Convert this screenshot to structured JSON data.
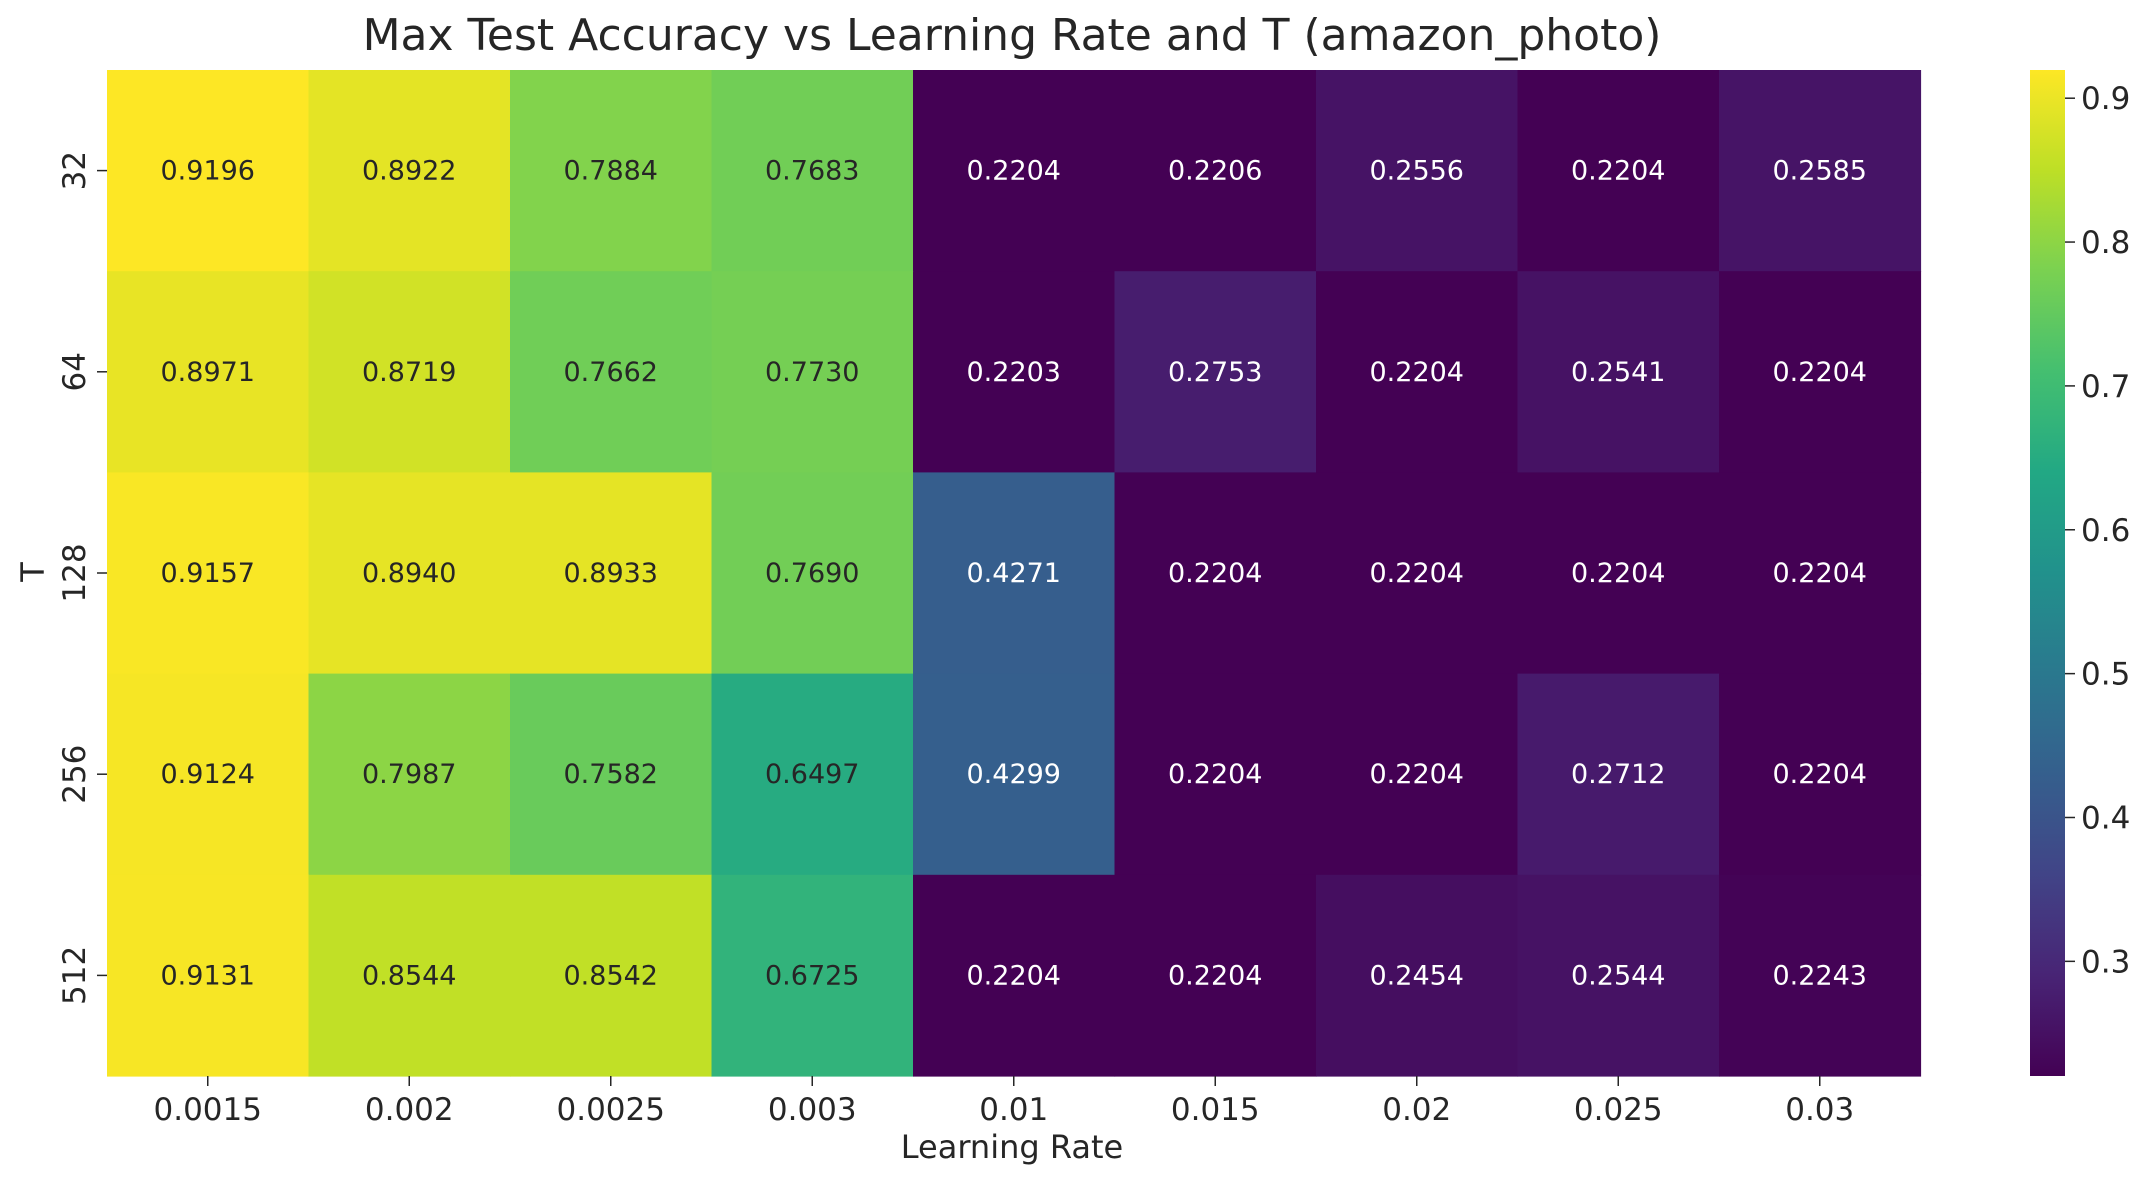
{
  "chart_data": {
    "type": "heatmap",
    "title": "Max Test Accuracy vs Learning Rate and T (amazon_photo)",
    "xlabel": "Learning Rate",
    "ylabel": "T",
    "x_categories": [
      "0.0015",
      "0.002",
      "0.0025",
      "0.003",
      "0.01",
      "0.015",
      "0.02",
      "0.025",
      "0.03"
    ],
    "y_categories": [
      "32",
      "64",
      "128",
      "256",
      "512"
    ],
    "values": [
      [
        0.9196,
        0.8922,
        0.7884,
        0.7683,
        0.2204,
        0.2206,
        0.2556,
        0.2204,
        0.2585
      ],
      [
        0.8971,
        0.8719,
        0.7662,
        0.773,
        0.2203,
        0.2753,
        0.2204,
        0.2541,
        0.2204
      ],
      [
        0.9157,
        0.894,
        0.8933,
        0.769,
        0.4271,
        0.2204,
        0.2204,
        0.2204,
        0.2204
      ],
      [
        0.9124,
        0.7987,
        0.7582,
        0.6497,
        0.4299,
        0.2204,
        0.2204,
        0.2712,
        0.2204
      ],
      [
        0.9131,
        0.8544,
        0.8542,
        0.6725,
        0.2204,
        0.2204,
        0.2454,
        0.2544,
        0.2243
      ]
    ],
    "value_labels": [
      [
        "0.9196",
        "0.8922",
        "0.7884",
        "0.7683",
        "0.2204",
        "0.2206",
        "0.2556",
        "0.2204",
        "0.2585"
      ],
      [
        "0.8971",
        "0.8719",
        "0.7662",
        "0.7730",
        "0.2203",
        "0.2753",
        "0.2204",
        "0.2541",
        "0.2204"
      ],
      [
        "0.9157",
        "0.8940",
        "0.8933",
        "0.7690",
        "0.4271",
        "0.2204",
        "0.2204",
        "0.2204",
        "0.2204"
      ],
      [
        "0.9124",
        "0.7987",
        "0.7582",
        "0.6497",
        "0.4299",
        "0.2204",
        "0.2204",
        "0.2712",
        "0.2204"
      ],
      [
        "0.9131",
        "0.8544",
        "0.8542",
        "0.6725",
        "0.2204",
        "0.2204",
        "0.2454",
        "0.2544",
        "0.2243"
      ]
    ],
    "colormap": "viridis",
    "color_range": [
      0.2203,
      0.9196
    ],
    "colorbar_ticks": [
      "0.3",
      "0.4",
      "0.5",
      "0.6",
      "0.7",
      "0.8",
      "0.9"
    ],
    "colorbar_tick_values": [
      0.3,
      0.4,
      0.5,
      0.6,
      0.7,
      0.8,
      0.9
    ],
    "colorbar_placement": "right",
    "grid": false,
    "annot_dark_color": "#262626",
    "annot_light_color": "#ffffff"
  }
}
